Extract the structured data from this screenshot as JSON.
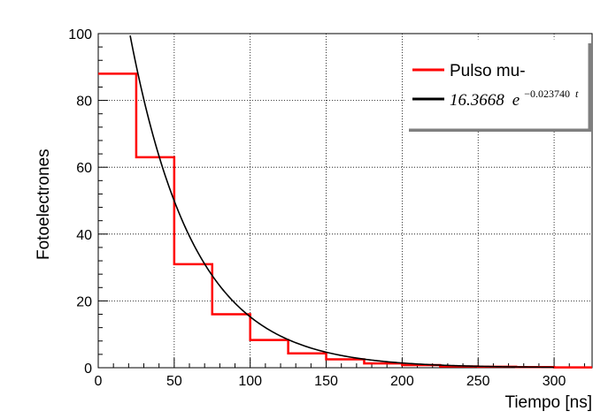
{
  "chart_data": {
    "type": "line",
    "xlabel": "Tiempo [ns]",
    "ylabel": "Fotoelectrones",
    "xlim": [
      0,
      325
    ],
    "ylim": [
      0,
      100
    ],
    "x_ticks": [
      0,
      50,
      100,
      150,
      200,
      250,
      300
    ],
    "y_ticks": [
      0,
      20,
      40,
      60,
      80,
      100
    ],
    "grid": true,
    "legend_position": "top-right",
    "series": [
      {
        "name": "Pulso mu-",
        "kind": "histogram-step",
        "color": "#ff0000",
        "bin_edges": [
          0,
          25,
          50,
          75,
          100,
          125,
          150,
          175,
          200,
          225,
          250,
          275,
          300,
          325
        ],
        "values": [
          88,
          63,
          31,
          16,
          8.3,
          4.3,
          2.5,
          1.3,
          0.8,
          0.4,
          0.3,
          0.2,
          0.1
        ]
      },
      {
        "name": "16.3668 e^{-0.023740 t}",
        "kind": "fit-curve",
        "color": "#000000",
        "amplitude": 16.3668,
        "decay": 0.02374,
        "x_range": [
          10,
          300
        ]
      }
    ],
    "legend": {
      "entries": [
        {
          "label": "Pulso mu-",
          "color": "#ff0000"
        },
        {
          "label_base": "16.3668",
          "label_e": "e",
          "label_exp": "−0.023740",
          "label_t": "t",
          "color": "#000000"
        }
      ]
    }
  }
}
